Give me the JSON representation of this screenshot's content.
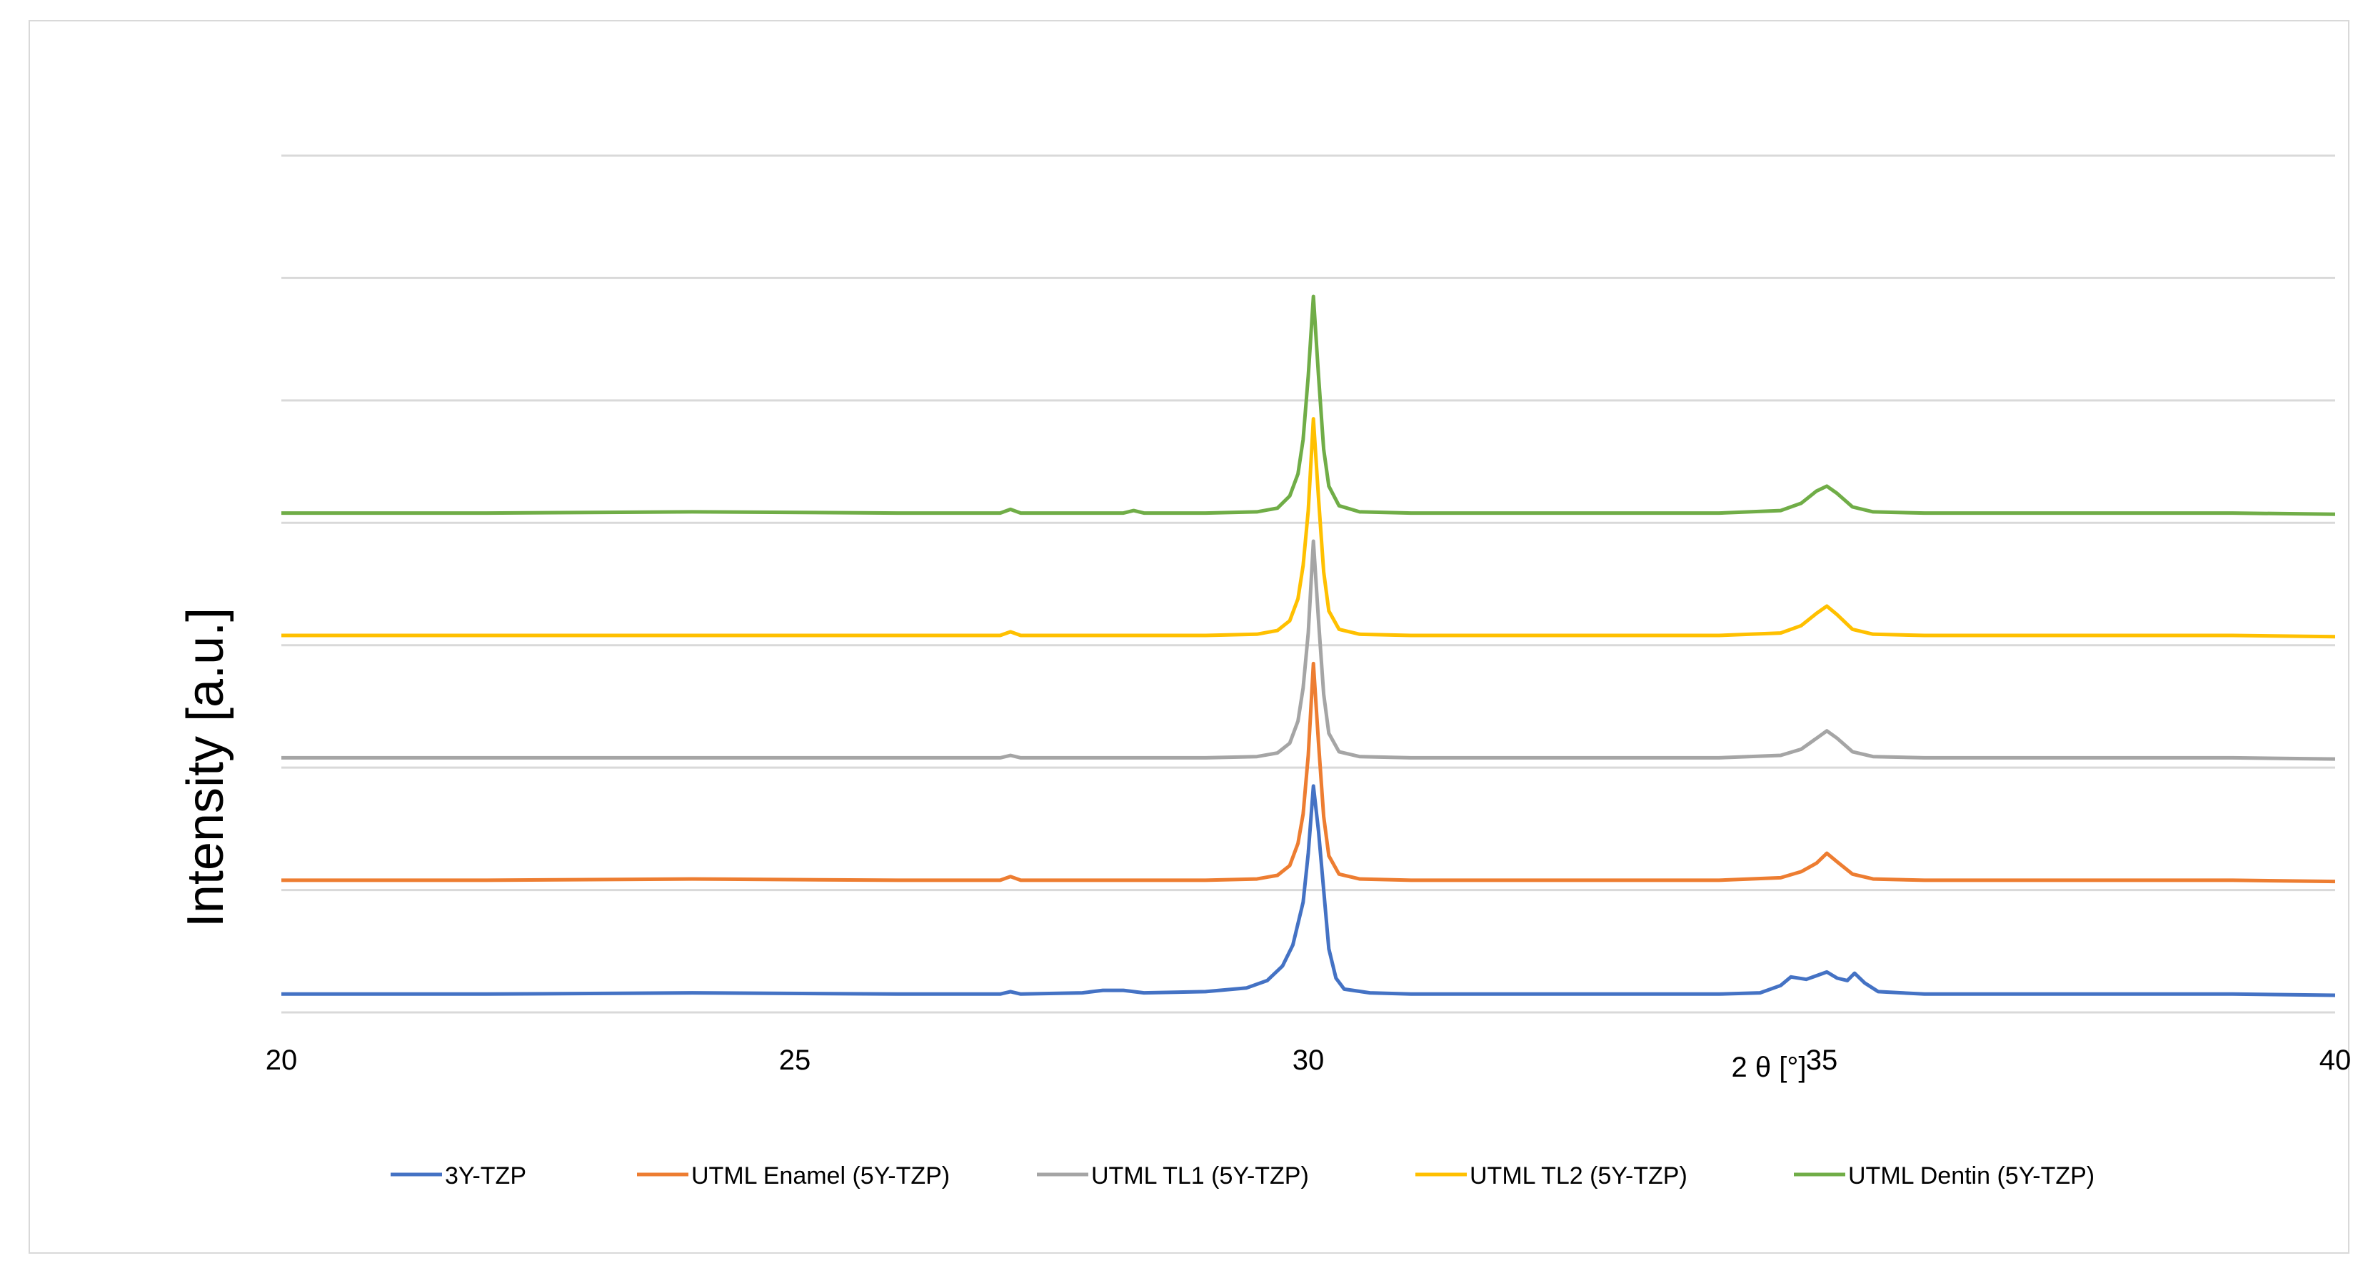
{
  "chart_data": {
    "type": "line",
    "title": "",
    "xlabel": "2 θ  [°]",
    "ylabel": "Intensity [a.u.]",
    "xlim": [
      20,
      40
    ],
    "ylim": [
      0,
      7
    ],
    "x_ticks": [
      20,
      25,
      30,
      35,
      40
    ],
    "x_tick_labels": [
      "20",
      "25",
      "30",
      "35",
      "40"
    ],
    "y_tick_labels_shown": false,
    "grid": "horizontal",
    "legend_position": "bottom",
    "series": [
      {
        "name": "3Y-TZP",
        "color": "#4472C4",
        "offset": 0.15,
        "points": [
          [
            20,
            0.15
          ],
          [
            22,
            0.15
          ],
          [
            24,
            0.16
          ],
          [
            26,
            0.15
          ],
          [
            27,
            0.15
          ],
          [
            27.1,
            0.17
          ],
          [
            27.2,
            0.15
          ],
          [
            27.8,
            0.16
          ],
          [
            28.0,
            0.18
          ],
          [
            28.2,
            0.18
          ],
          [
            28.4,
            0.16
          ],
          [
            29.0,
            0.17
          ],
          [
            29.4,
            0.2
          ],
          [
            29.6,
            0.26
          ],
          [
            29.75,
            0.38
          ],
          [
            29.85,
            0.55
          ],
          [
            29.95,
            0.9
          ],
          [
            30.0,
            1.3
          ],
          [
            30.05,
            1.85
          ],
          [
            30.1,
            1.48
          ],
          [
            30.15,
            1.0
          ],
          [
            30.2,
            0.52
          ],
          [
            30.27,
            0.28
          ],
          [
            30.35,
            0.19
          ],
          [
            30.6,
            0.16
          ],
          [
            31,
            0.15
          ],
          [
            32,
            0.15
          ],
          [
            33,
            0.15
          ],
          [
            34,
            0.15
          ],
          [
            34.4,
            0.16
          ],
          [
            34.6,
            0.22
          ],
          [
            34.7,
            0.29
          ],
          [
            34.85,
            0.27
          ],
          [
            35.05,
            0.33
          ],
          [
            35.15,
            0.28
          ],
          [
            35.25,
            0.26
          ],
          [
            35.32,
            0.32
          ],
          [
            35.42,
            0.24
          ],
          [
            35.55,
            0.17
          ],
          [
            36,
            0.15
          ],
          [
            37,
            0.15
          ],
          [
            38,
            0.15
          ],
          [
            39,
            0.15
          ],
          [
            40,
            0.14
          ]
        ]
      },
      {
        "name": "UTML Enamel (5Y-TZP)",
        "color": "#ED7D31",
        "offset": 1.08,
        "points": [
          [
            20,
            1.08
          ],
          [
            22,
            1.08
          ],
          [
            24,
            1.09
          ],
          [
            26,
            1.08
          ],
          [
            27,
            1.08
          ],
          [
            27.1,
            1.11
          ],
          [
            27.2,
            1.08
          ],
          [
            28,
            1.08
          ],
          [
            29,
            1.08
          ],
          [
            29.5,
            1.09
          ],
          [
            29.7,
            1.12
          ],
          [
            29.82,
            1.2
          ],
          [
            29.9,
            1.38
          ],
          [
            29.95,
            1.62
          ],
          [
            30.0,
            2.1
          ],
          [
            30.05,
            2.85
          ],
          [
            30.1,
            2.2
          ],
          [
            30.15,
            1.6
          ],
          [
            30.2,
            1.28
          ],
          [
            30.3,
            1.13
          ],
          [
            30.5,
            1.09
          ],
          [
            31,
            1.08
          ],
          [
            32,
            1.08
          ],
          [
            33,
            1.08
          ],
          [
            34,
            1.08
          ],
          [
            34.6,
            1.1
          ],
          [
            34.8,
            1.15
          ],
          [
            34.95,
            1.22
          ],
          [
            35.05,
            1.3
          ],
          [
            35.15,
            1.23
          ],
          [
            35.3,
            1.13
          ],
          [
            35.5,
            1.09
          ],
          [
            36,
            1.08
          ],
          [
            37,
            1.08
          ],
          [
            38,
            1.08
          ],
          [
            39,
            1.08
          ],
          [
            40,
            1.07
          ]
        ]
      },
      {
        "name": "UTML TL1 (5Y-TZP)",
        "color": "#A5A5A5",
        "offset": 2.08,
        "points": [
          [
            20,
            2.08
          ],
          [
            22,
            2.08
          ],
          [
            24,
            2.08
          ],
          [
            26,
            2.08
          ],
          [
            27,
            2.08
          ],
          [
            27.1,
            2.1
          ],
          [
            27.2,
            2.08
          ],
          [
            28,
            2.08
          ],
          [
            29,
            2.08
          ],
          [
            29.5,
            2.09
          ],
          [
            29.7,
            2.12
          ],
          [
            29.82,
            2.2
          ],
          [
            29.9,
            2.38
          ],
          [
            29.95,
            2.65
          ],
          [
            30.0,
            3.1
          ],
          [
            30.05,
            3.85
          ],
          [
            30.1,
            3.2
          ],
          [
            30.15,
            2.6
          ],
          [
            30.2,
            2.28
          ],
          [
            30.3,
            2.13
          ],
          [
            30.5,
            2.09
          ],
          [
            31,
            2.08
          ],
          [
            32,
            2.08
          ],
          [
            33,
            2.08
          ],
          [
            34,
            2.08
          ],
          [
            34.6,
            2.1
          ],
          [
            34.8,
            2.15
          ],
          [
            34.95,
            2.24
          ],
          [
            35.05,
            2.3
          ],
          [
            35.15,
            2.24
          ],
          [
            35.3,
            2.13
          ],
          [
            35.5,
            2.09
          ],
          [
            36,
            2.08
          ],
          [
            37,
            2.08
          ],
          [
            38,
            2.08
          ],
          [
            39,
            2.08
          ],
          [
            40,
            2.07
          ]
        ]
      },
      {
        "name": "UTML TL2 (5Y-TZP)",
        "color": "#FFC000",
        "offset": 3.08,
        "points": [
          [
            20,
            3.08
          ],
          [
            22,
            3.08
          ],
          [
            24,
            3.08
          ],
          [
            26,
            3.08
          ],
          [
            27,
            3.08
          ],
          [
            27.1,
            3.11
          ],
          [
            27.2,
            3.08
          ],
          [
            28,
            3.08
          ],
          [
            29,
            3.08
          ],
          [
            29.5,
            3.09
          ],
          [
            29.7,
            3.12
          ],
          [
            29.82,
            3.2
          ],
          [
            29.9,
            3.38
          ],
          [
            29.95,
            3.65
          ],
          [
            30.0,
            4.1
          ],
          [
            30.05,
            4.85
          ],
          [
            30.1,
            4.2
          ],
          [
            30.15,
            3.6
          ],
          [
            30.2,
            3.28
          ],
          [
            30.3,
            3.13
          ],
          [
            30.5,
            3.09
          ],
          [
            31,
            3.08
          ],
          [
            32,
            3.08
          ],
          [
            33,
            3.08
          ],
          [
            34,
            3.08
          ],
          [
            34.6,
            3.1
          ],
          [
            34.8,
            3.16
          ],
          [
            34.95,
            3.26
          ],
          [
            35.05,
            3.32
          ],
          [
            35.15,
            3.25
          ],
          [
            35.3,
            3.13
          ],
          [
            35.5,
            3.09
          ],
          [
            36,
            3.08
          ],
          [
            37,
            3.08
          ],
          [
            38,
            3.08
          ],
          [
            39,
            3.08
          ],
          [
            40,
            3.07
          ]
        ]
      },
      {
        "name": "UTML Dentin (5Y-TZP)",
        "color": "#70AD47",
        "offset": 4.08,
        "points": [
          [
            20,
            4.08
          ],
          [
            22,
            4.08
          ],
          [
            24,
            4.09
          ],
          [
            26,
            4.08
          ],
          [
            27,
            4.08
          ],
          [
            27.1,
            4.11
          ],
          [
            27.2,
            4.08
          ],
          [
            28.2,
            4.08
          ],
          [
            28.3,
            4.1
          ],
          [
            28.4,
            4.08
          ],
          [
            29,
            4.08
          ],
          [
            29.5,
            4.09
          ],
          [
            29.7,
            4.12
          ],
          [
            29.82,
            4.22
          ],
          [
            29.9,
            4.4
          ],
          [
            29.95,
            4.68
          ],
          [
            30.0,
            5.2
          ],
          [
            30.05,
            5.85
          ],
          [
            30.1,
            5.2
          ],
          [
            30.15,
            4.6
          ],
          [
            30.2,
            4.3
          ],
          [
            30.3,
            4.14
          ],
          [
            30.5,
            4.09
          ],
          [
            31,
            4.08
          ],
          [
            32,
            4.08
          ],
          [
            33,
            4.08
          ],
          [
            34,
            4.08
          ],
          [
            34.6,
            4.1
          ],
          [
            34.8,
            4.16
          ],
          [
            34.95,
            4.26
          ],
          [
            35.05,
            4.3
          ],
          [
            35.15,
            4.24
          ],
          [
            35.3,
            4.13
          ],
          [
            35.5,
            4.09
          ],
          [
            36,
            4.08
          ],
          [
            37,
            4.08
          ],
          [
            38,
            4.08
          ],
          [
            39,
            4.08
          ],
          [
            40,
            4.07
          ]
        ]
      }
    ]
  }
}
